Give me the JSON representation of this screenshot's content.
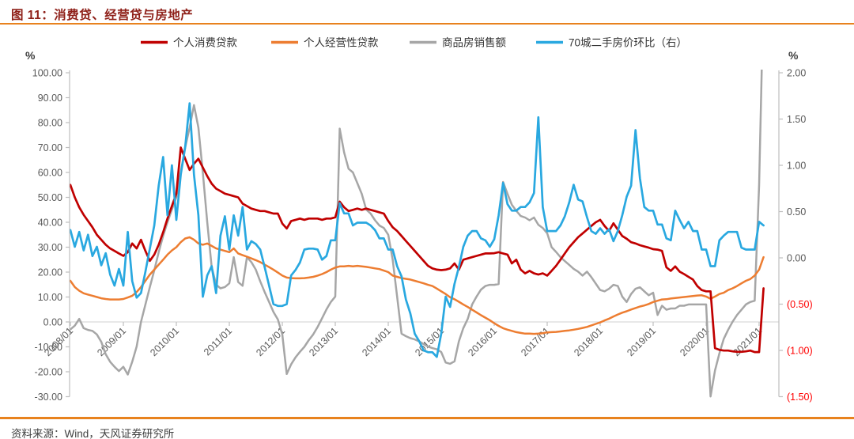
{
  "title": "图 11：消费贷、经营贷与房地产",
  "source": "资料来源：Wind，天风证券研究所",
  "unit_left": "%",
  "unit_right": "%",
  "colors": {
    "title_text": "#8e1f18",
    "rule_orange": "#e8821e",
    "axis_line": "#bfbfbf",
    "zero_line": "#d9d9d9",
    "axis_text": "#595959",
    "negative_tick_text": "#ff0000",
    "legend_text": "#333333",
    "source_text": "#3f3f3f"
  },
  "chart_data": {
    "type": "line",
    "title": "消费贷、经营贷与房地产",
    "x_start": "2008/01",
    "x_frequency": "monthly",
    "x_tick_labels": [
      "2008/01",
      "2009/01",
      "2010/01",
      "2011/01",
      "2012/01",
      "2013/01",
      "2014/01",
      "2015/01",
      "2016/01",
      "2017/01",
      "2018/01",
      "2019/01",
      "2020/01",
      "2021/01"
    ],
    "left_axis": {
      "unit": "%",
      "min": -30,
      "max": 100,
      "tick_labels": [
        "100.00",
        "90.00",
        "80.00",
        "70.00",
        "60.00",
        "50.00",
        "40.00",
        "30.00",
        "20.00",
        "10.00",
        "0.00",
        "-10.00",
        "-20.00",
        "-30.00"
      ]
    },
    "right_axis": {
      "unit": "%",
      "min": -1.5,
      "max": 2,
      "tick_labels": [
        "2.00",
        "1.50",
        "1.00",
        "0.50",
        "0.00",
        "(0.50)",
        "(1.00)",
        "(1.50)"
      ]
    },
    "grid": "zero-line-only",
    "legend_position": "top",
    "series": [
      {
        "name": "个人消费贷款",
        "color": "#c00000",
        "axis": "left",
        "values": [
          55,
          50,
          46,
          43,
          40.5,
          38,
          35,
          33,
          31,
          29.5,
          28.5,
          27.5,
          26.5,
          28,
          31.5,
          29.5,
          33,
          28.5,
          24.5,
          27,
          31,
          36,
          41.5,
          46.5,
          51.5,
          70,
          65.5,
          61,
          63.5,
          65.5,
          62,
          58.5,
          55.5,
          53.5,
          52.5,
          51.5,
          51,
          50.5,
          50,
          47.5,
          46.5,
          45.5,
          45,
          44.5,
          44.5,
          44,
          43.5,
          43.5,
          39.5,
          37.5,
          40.5,
          41,
          41.5,
          41,
          41.5,
          41.5,
          41.5,
          41,
          41.5,
          41.5,
          42,
          48.3,
          46,
          44.5,
          45,
          45.5,
          45,
          45.5,
          45,
          44.5,
          44,
          43.5,
          40.5,
          38,
          36.5,
          34.5,
          32.5,
          30.5,
          28.5,
          26.5,
          24.5,
          22.5,
          21.5,
          21,
          20.8,
          21,
          21.5,
          23.5,
          21,
          25,
          25.5,
          26,
          26.5,
          27,
          27.5,
          27.5,
          27.6,
          28,
          27.5,
          27,
          23.5,
          25,
          21,
          19.5,
          20.5,
          19.5,
          19,
          19.5,
          18.6,
          20.5,
          22.5,
          25,
          27.5,
          30,
          32,
          34,
          35.5,
          37,
          38.5,
          40,
          41,
          38.5,
          36.5,
          39.6,
          37,
          34.5,
          33.4,
          32,
          31.5,
          30.8,
          30.3,
          29.8,
          29.2,
          29,
          28.5,
          21.9,
          20.5,
          22.3,
          20.2,
          19.2,
          18.1,
          17,
          14.4,
          12.8,
          12.3,
          12.3,
          -10.5,
          -11.2,
          -11.5,
          -11.5,
          -11.8,
          -12,
          -12,
          -11.8,
          -11.5,
          -12.1,
          -12.1,
          13.5
        ]
      },
      {
        "name": "个人经营性贷款",
        "color": "#ed7d31",
        "axis": "left",
        "values": [
          16.5,
          14,
          12.5,
          11.5,
          11,
          10.5,
          10,
          9.5,
          9.2,
          9,
          9,
          9,
          9.2,
          9.8,
          10.5,
          12,
          14,
          16.5,
          19,
          21,
          23,
          25,
          27,
          28.7,
          30,
          32,
          33.5,
          34,
          33,
          31.5,
          31,
          31.5,
          30.5,
          29.5,
          29,
          28.5,
          28,
          29.5,
          27.5,
          26.8,
          26.2,
          25.5,
          24.8,
          24,
          23,
          22,
          21,
          19.8,
          18.6,
          17.8,
          17.6,
          17.5,
          17.5,
          17.6,
          17.8,
          18.1,
          18.6,
          19.2,
          20,
          21,
          21.8,
          22.3,
          22.3,
          22.5,
          22.3,
          22.5,
          22.3,
          22.1,
          21.8,
          21.5,
          21.2,
          20.6,
          20,
          18.6,
          18.1,
          17.6,
          17.3,
          17,
          16.5,
          16,
          15.5,
          14.9,
          14.4,
          13.4,
          12.3,
          11.2,
          9.9,
          9.1,
          8.1,
          7,
          6,
          4.9,
          3.8,
          2.7,
          1.7,
          0.7,
          -0.5,
          -1.6,
          -2.5,
          -3.1,
          -3.6,
          -4.1,
          -4.4,
          -4.7,
          -4.7,
          -4.8,
          -4.7,
          -4.5,
          -4.2,
          -4.1,
          -4,
          -3.8,
          -3.6,
          -3.4,
          -3.1,
          -2.8,
          -2.4,
          -2,
          -1.4,
          -0.8,
          -0.2,
          0.6,
          1.3,
          2.2,
          3,
          3.7,
          4.3,
          5,
          5.6,
          6.2,
          6.6,
          7.2,
          8,
          8.5,
          9,
          9.1,
          9.4,
          9.6,
          9.8,
          10,
          10.2,
          10.4,
          10.6,
          10.7,
          10.2,
          9.3,
          10.2,
          11.2,
          11.7,
          12.8,
          13.5,
          14.4,
          15.5,
          16.5,
          17.2,
          18.6,
          21,
          26
        ]
      },
      {
        "name": "商品房销售额",
        "color": "#a6a6a6",
        "axis": "left",
        "values": [
          -3,
          -1.5,
          1.2,
          -2.5,
          -3.2,
          -3.6,
          -5,
          -8,
          -13,
          -16,
          -18,
          -19.7,
          -18,
          -21.1,
          -16,
          -9.9,
          0,
          7,
          14,
          20.7,
          28,
          34.5,
          40,
          45.1,
          50,
          60,
          70,
          78,
          87,
          78,
          60,
          40,
          22,
          15,
          13.5,
          14,
          15.5,
          26,
          16,
          14.5,
          26,
          24,
          21,
          16.3,
          12,
          8,
          4,
          1,
          -5,
          -20.9,
          -17,
          -14.2,
          -12,
          -10,
          -7.3,
          -5,
          -2,
          1.5,
          5,
          8,
          10.2,
          77.6,
          68,
          61.5,
          60,
          55.7,
          51.4,
          45.1,
          43.5,
          40.8,
          38.7,
          37.7,
          35,
          25,
          10.2,
          -4.7,
          -5.7,
          -6.5,
          -7,
          -7.8,
          -8.9,
          -9.9,
          -10.5,
          -11,
          -12.1,
          -16.3,
          -16.8,
          -15.8,
          -7.8,
          -2.5,
          1.2,
          7,
          10.2,
          13,
          14.4,
          14.9,
          14.9,
          15.2,
          56.2,
          51.4,
          47,
          44.6,
          42.5,
          41.9,
          40.8,
          41.9,
          39,
          37.7,
          35.6,
          30,
          28.1,
          26,
          24.4,
          22.9,
          21.3,
          20.2,
          18.6,
          20.2,
          18,
          15.4,
          12.8,
          12.3,
          13.3,
          14.9,
          14.4,
          10.2,
          8,
          11.2,
          13.3,
          13.9,
          12.3,
          10.7,
          11.7,
          2.8,
          6.5,
          4.9,
          5.4,
          5.4,
          6.5,
          6.5,
          7,
          7,
          7,
          7,
          7,
          -29.9,
          -19.5,
          -12.6,
          -6.8,
          -3.1,
          0.1,
          2.8,
          4.9,
          7,
          8,
          8.5,
          55,
          133
        ]
      },
      {
        "name": "70城二手房价环比（右）",
        "color": "#29a8e0",
        "axis": "right",
        "values": [
          0.3,
          0.12,
          0.28,
          0.08,
          0.25,
          0.02,
          0.12,
          -0.08,
          0.05,
          -0.18,
          -0.3,
          -0.12,
          -0.3,
          0.28,
          -0.25,
          -0.43,
          -0.38,
          -0.15,
          0.1,
          0.35,
          0.78,
          1.09,
          0.46,
          1.0,
          0.41,
          0.9,
          1.2,
          1.67,
          0.9,
          0.46,
          -0.42,
          -0.19,
          -0.09,
          -0.38,
          0.24,
          0.45,
          0.09,
          0.46,
          0.24,
          0.55,
          0.09,
          0.18,
          0.15,
          0.09,
          -0.1,
          -0.3,
          -0.5,
          -0.52,
          -0.52,
          -0.5,
          -0.19,
          -0.13,
          -0.05,
          0.09,
          0.1,
          0.1,
          0.09,
          -0.02,
          0.02,
          0.19,
          0.19,
          0.59,
          0.48,
          0.48,
          0.35,
          0.38,
          0.38,
          0.38,
          0.35,
          0.3,
          0.21,
          0.21,
          0.09,
          0.09,
          -0.09,
          -0.2,
          -0.45,
          -0.6,
          -0.82,
          -0.9,
          -1.0,
          -1.02,
          -1.02,
          -1.07,
          -0.82,
          -0.42,
          -0.53,
          -0.28,
          -0.1,
          0.12,
          0.24,
          0.29,
          0.29,
          0.21,
          0.19,
          0.12,
          0.2,
          0.46,
          0.81,
          0.58,
          0.51,
          0.51,
          0.55,
          0.55,
          0.6,
          0.7,
          1.52,
          0.55,
          0.29,
          0.29,
          0.29,
          0.35,
          0.45,
          0.6,
          0.79,
          0.63,
          0.61,
          0.44,
          0.29,
          0.26,
          0.32,
          0.26,
          0.31,
          0.18,
          0.29,
          0.46,
          0.66,
          0.78,
          1.38,
          0.86,
          0.55,
          0.51,
          0.51,
          0.36,
          0.36,
          0.21,
          0.19,
          0.51,
          0.41,
          0.32,
          0.39,
          0.29,
          0.29,
          0.09,
          0.09,
          -0.09,
          -0.09,
          0.19,
          0.24,
          0.28,
          0.28,
          0.28,
          0.11,
          0.09,
          0.09,
          0.09,
          0.39,
          0.35
        ]
      }
    ]
  }
}
